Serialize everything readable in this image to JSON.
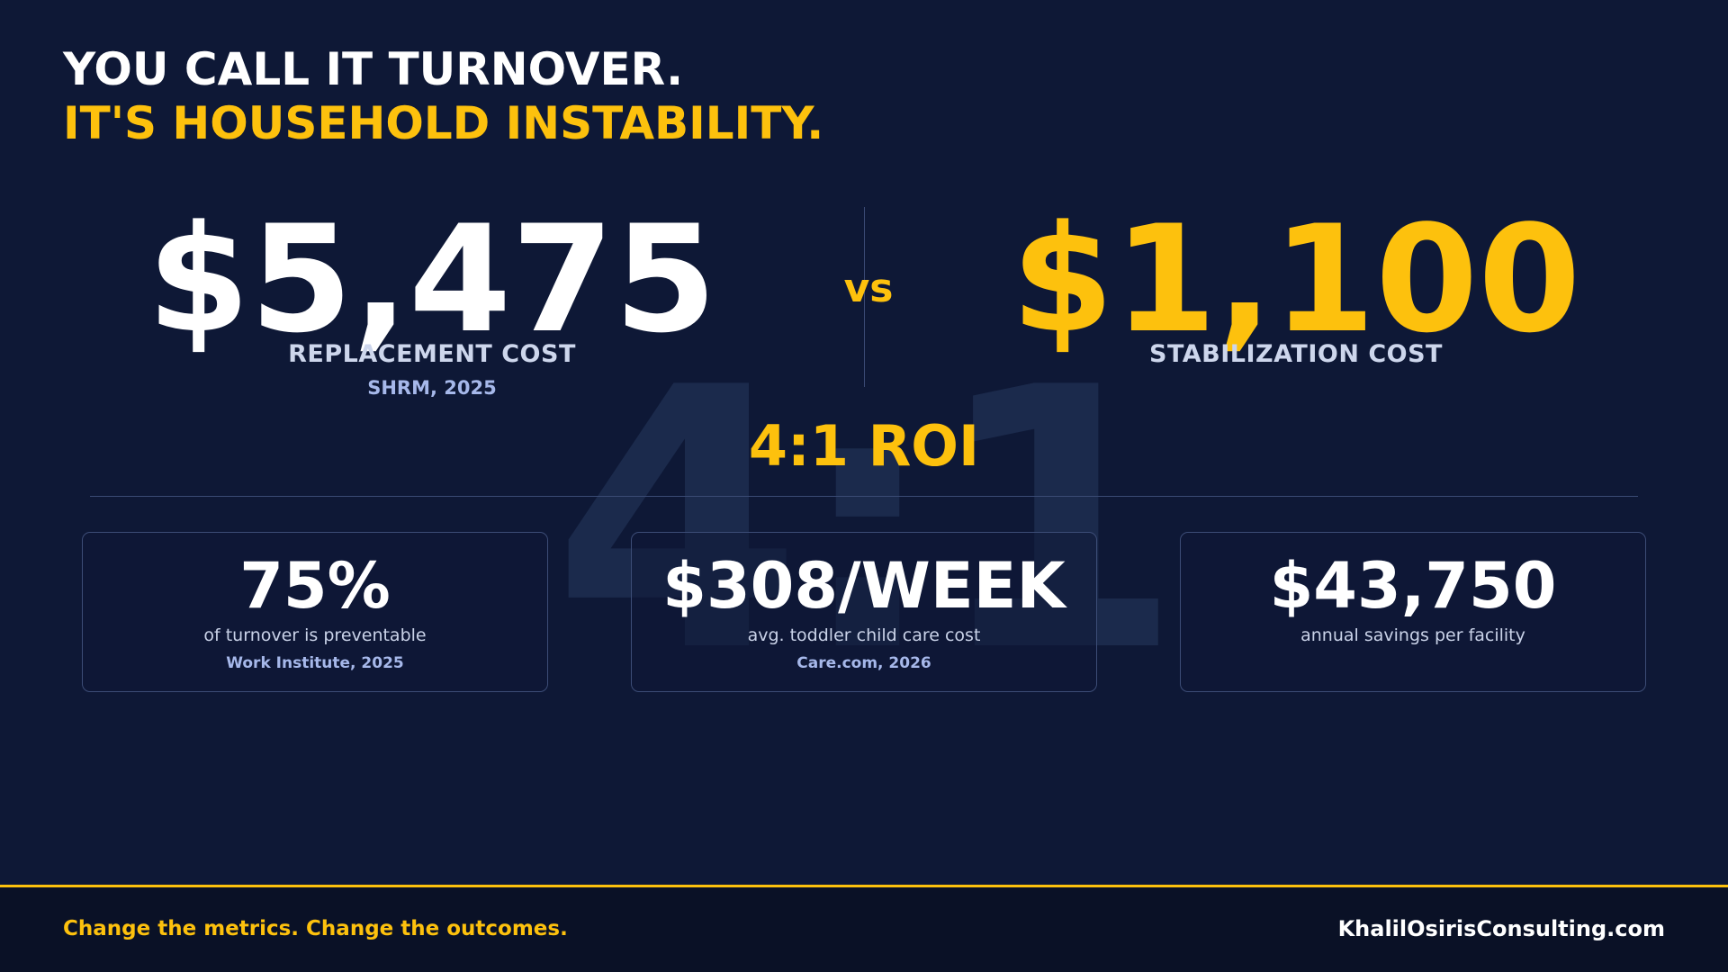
{
  "colors": {
    "background": "#0e1836",
    "accent": "#fdc10d",
    "footer_background": "#0a1126",
    "watermark": "#1b2a4c"
  },
  "headline": {
    "line1": "YOU CALL IT TURNOVER.",
    "line2": "IT'S HOUSEHOLD INSTABILITY."
  },
  "comparison": {
    "left": {
      "value": "$5,475",
      "label": "REPLACEMENT COST",
      "source": "SHRM, 2025"
    },
    "vs": "vs",
    "right": {
      "value": "$1,100",
      "label": "STABILIZATION COST"
    }
  },
  "watermark_ratio": "4:1",
  "roi": "4:1 ROI",
  "stats": [
    {
      "value": "75%",
      "description": "of turnover is preventable",
      "source": "Work Institute, 2025"
    },
    {
      "value": "$308/WEEK",
      "description": "avg. toddler child care cost",
      "source": "Care.com, 2026"
    },
    {
      "value": "$43,750",
      "description": "annual savings per facility"
    }
  ],
  "footer": {
    "tagline": "Change the metrics. Change the outcomes.",
    "website": "KhalilOsirisConsulting.com"
  }
}
